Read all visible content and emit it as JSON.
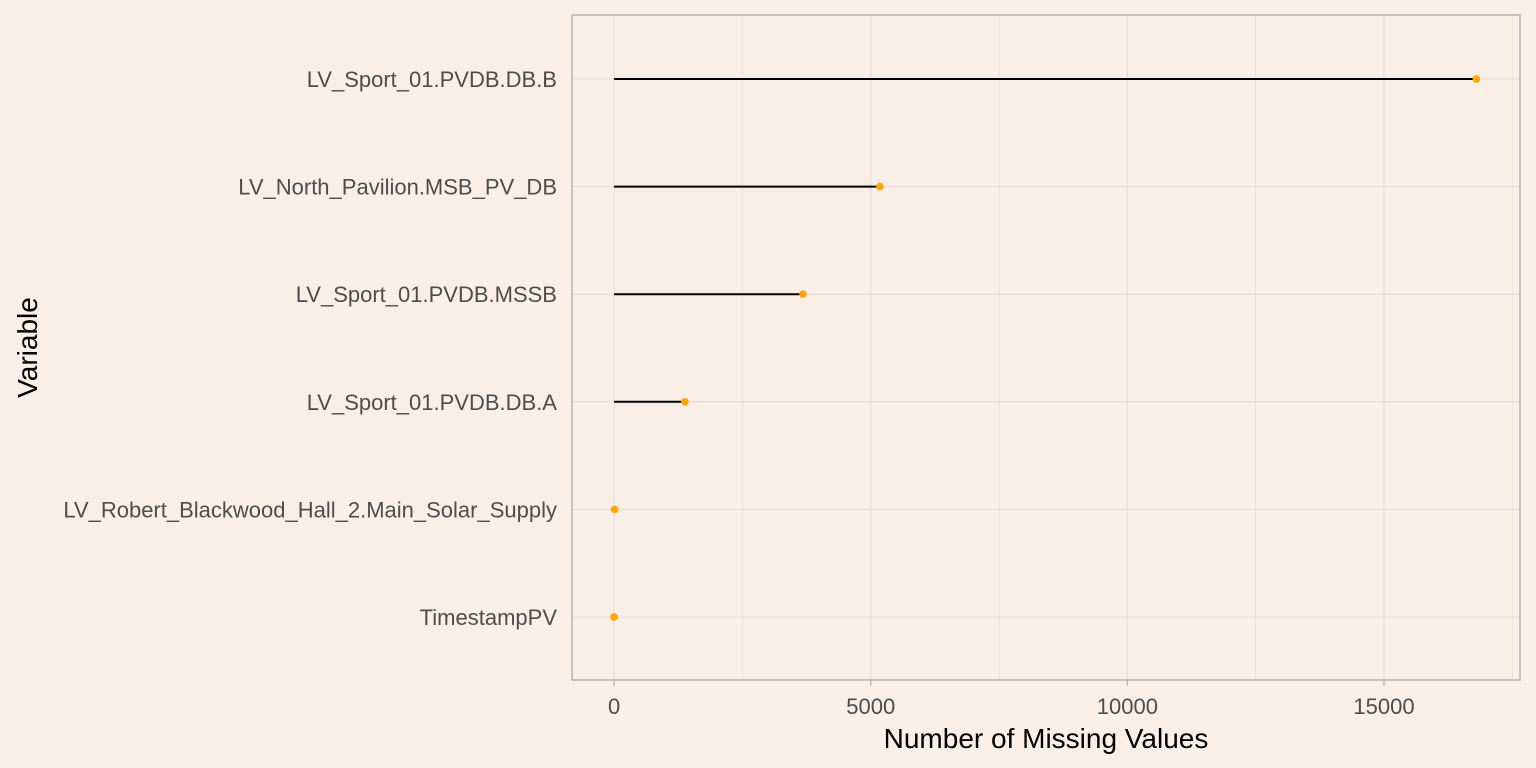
{
  "chart_data": {
    "type": "lollipop",
    "title": "",
    "xlabel": "Number of Missing Values",
    "ylabel": "Variable",
    "categories": [
      "LV_Sport_01.PVDB.DB.B",
      "LV_North_Pavilion.MSB_PV_DB",
      "LV_Sport_01.PVDB.MSSB",
      "LV_Sport_01.PVDB.DB.A",
      "LV_Robert_Blackwood_Hall_2.Main_Solar_Supply",
      "TimestampPV"
    ],
    "values": [
      16800,
      5180,
      3680,
      1380,
      10,
      0
    ],
    "xlim": [
      -820,
      17650
    ],
    "xticks": [
      0,
      5000,
      10000,
      15000
    ],
    "xtick_labels": [
      "0",
      "5000",
      "10000",
      "15000"
    ],
    "grid": true,
    "colors": {
      "background": "#faefe6",
      "panel_border": "#b3b3b3",
      "grid": "#e6dcd2",
      "stem": "#000000",
      "point": "#ffa500"
    }
  }
}
